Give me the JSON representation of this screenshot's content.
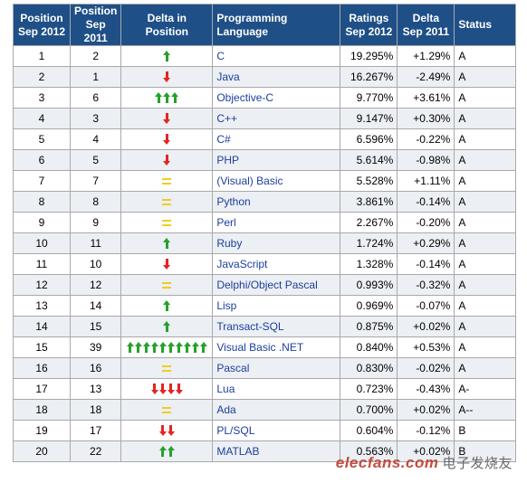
{
  "headers": {
    "pos_now": "Position Sep 2012",
    "pos_prev": "Position Sep 2011",
    "delta_pos": "Delta in Position",
    "language": "Programming Language",
    "ratings": "Ratings Sep 2012",
    "delta_rating": "Delta Sep 2011",
    "status": "Status"
  },
  "rows": [
    {
      "pos_now": "1",
      "pos_prev": "2",
      "dir": "up",
      "count": 1,
      "language": "C",
      "rating": "19.295%",
      "delta": "+1.29%",
      "status": "A"
    },
    {
      "pos_now": "2",
      "pos_prev": "1",
      "dir": "down",
      "count": 1,
      "language": "Java",
      "rating": "16.267%",
      "delta": "-2.49%",
      "status": "A"
    },
    {
      "pos_now": "3",
      "pos_prev": "6",
      "dir": "up",
      "count": 3,
      "language": "Objective-C",
      "rating": "9.770%",
      "delta": "+3.61%",
      "status": "A"
    },
    {
      "pos_now": "4",
      "pos_prev": "3",
      "dir": "down",
      "count": 1,
      "language": "C++",
      "rating": "9.147%",
      "delta": "+0.30%",
      "status": "A"
    },
    {
      "pos_now": "5",
      "pos_prev": "4",
      "dir": "down",
      "count": 1,
      "language": "C#",
      "rating": "6.596%",
      "delta": "-0.22%",
      "status": "A"
    },
    {
      "pos_now": "6",
      "pos_prev": "5",
      "dir": "down",
      "count": 1,
      "language": "PHP",
      "rating": "5.614%",
      "delta": "-0.98%",
      "status": "A"
    },
    {
      "pos_now": "7",
      "pos_prev": "7",
      "dir": "same",
      "count": 1,
      "language": "(Visual) Basic",
      "rating": "5.528%",
      "delta": "+1.11%",
      "status": "A"
    },
    {
      "pos_now": "8",
      "pos_prev": "8",
      "dir": "same",
      "count": 1,
      "language": "Python",
      "rating": "3.861%",
      "delta": "-0.14%",
      "status": "A"
    },
    {
      "pos_now": "9",
      "pos_prev": "9",
      "dir": "same",
      "count": 1,
      "language": "Perl",
      "rating": "2.267%",
      "delta": "-0.20%",
      "status": "A"
    },
    {
      "pos_now": "10",
      "pos_prev": "11",
      "dir": "up",
      "count": 1,
      "language": "Ruby",
      "rating": "1.724%",
      "delta": "+0.29%",
      "status": "A"
    },
    {
      "pos_now": "11",
      "pos_prev": "10",
      "dir": "down",
      "count": 1,
      "language": "JavaScript",
      "rating": "1.328%",
      "delta": "-0.14%",
      "status": "A"
    },
    {
      "pos_now": "12",
      "pos_prev": "12",
      "dir": "same",
      "count": 1,
      "language": "Delphi/Object Pascal",
      "rating": "0.993%",
      "delta": "-0.32%",
      "status": "A"
    },
    {
      "pos_now": "13",
      "pos_prev": "14",
      "dir": "up",
      "count": 1,
      "language": "Lisp",
      "rating": "0.969%",
      "delta": "-0.07%",
      "status": "A"
    },
    {
      "pos_now": "14",
      "pos_prev": "15",
      "dir": "up",
      "count": 1,
      "language": "Transact-SQL",
      "rating": "0.875%",
      "delta": "+0.02%",
      "status": "A"
    },
    {
      "pos_now": "15",
      "pos_prev": "39",
      "dir": "up",
      "count": 10,
      "language": "Visual Basic .NET",
      "rating": "0.840%",
      "delta": "+0.53%",
      "status": "A"
    },
    {
      "pos_now": "16",
      "pos_prev": "16",
      "dir": "same",
      "count": 1,
      "language": "Pascal",
      "rating": "0.830%",
      "delta": "-0.02%",
      "status": "A"
    },
    {
      "pos_now": "17",
      "pos_prev": "13",
      "dir": "down",
      "count": 4,
      "language": "Lua",
      "rating": "0.723%",
      "delta": "-0.43%",
      "status": "A-"
    },
    {
      "pos_now": "18",
      "pos_prev": "18",
      "dir": "same",
      "count": 1,
      "language": "Ada",
      "rating": "0.700%",
      "delta": "+0.02%",
      "status": "A--"
    },
    {
      "pos_now": "19",
      "pos_prev": "17",
      "dir": "down",
      "count": 2,
      "language": "PL/SQL",
      "rating": "0.604%",
      "delta": "-0.12%",
      "status": "B"
    },
    {
      "pos_now": "20",
      "pos_prev": "22",
      "dir": "up",
      "count": 2,
      "language": "MATLAB",
      "rating": "0.563%",
      "delta": "+0.02%",
      "status": "B"
    }
  ],
  "colors": {
    "header_bg": "#1f4f87",
    "up_arrow": "#27a12b",
    "down_arrow": "#e52420",
    "equal_sign": "#f2cc1e",
    "link": "#1b3f9c"
  },
  "watermark": {
    "text": "elecfans.com",
    "sub": "电子发烧友"
  }
}
